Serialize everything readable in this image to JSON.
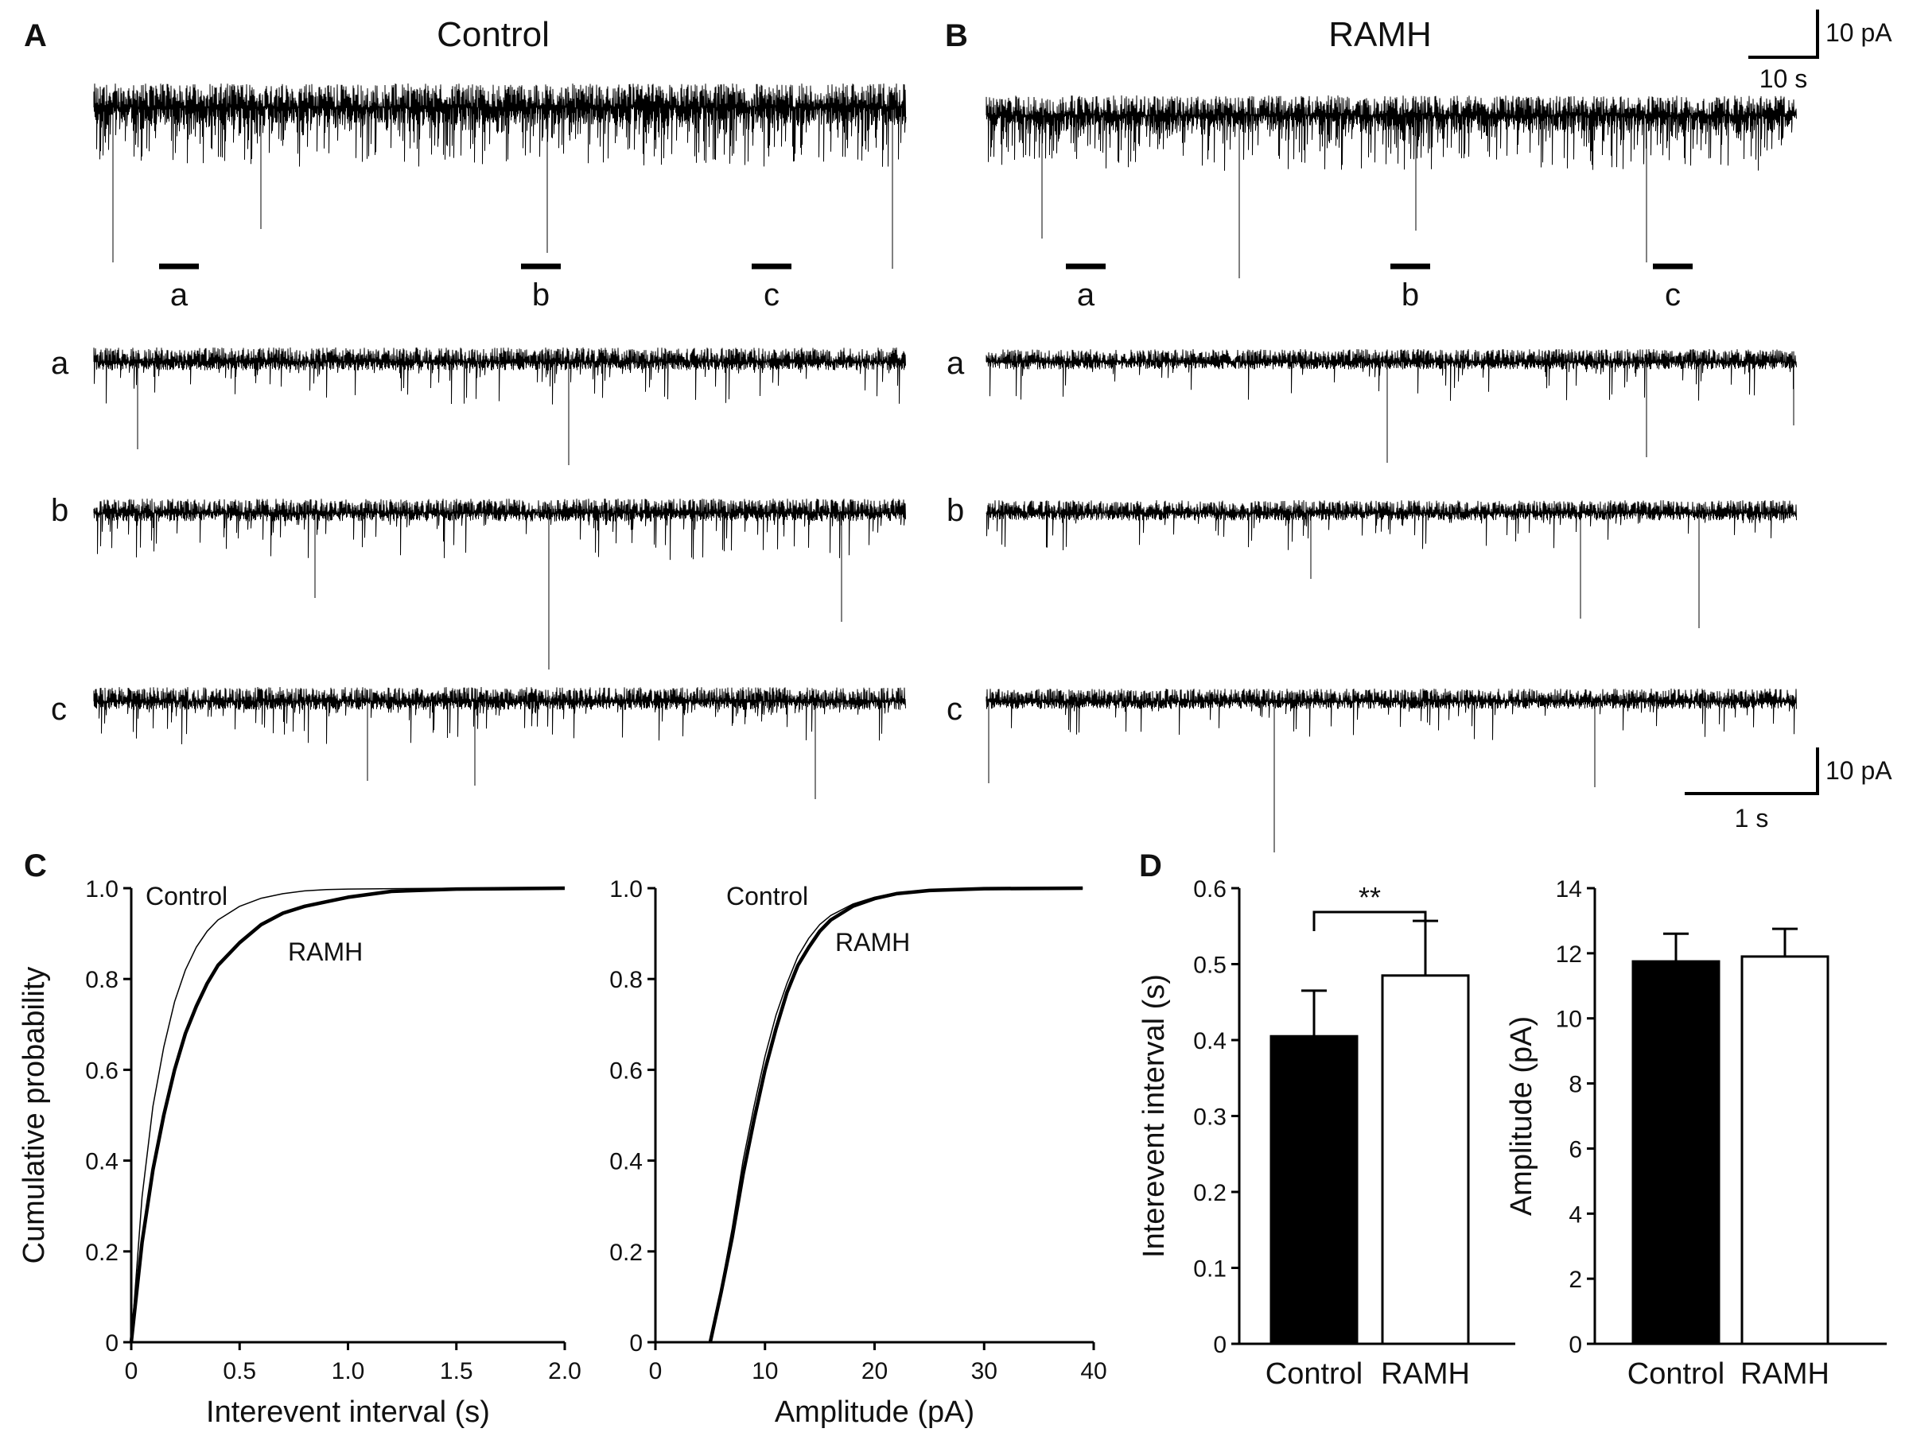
{
  "panels": {
    "A": {
      "letter": "A",
      "title": "Control"
    },
    "B": {
      "letter": "B",
      "title": "RAMH"
    },
    "C": {
      "letter": "C"
    },
    "D": {
      "letter": "D"
    }
  },
  "segments": [
    "a",
    "b",
    "c"
  ],
  "scalebars": {
    "top": {
      "y_label": "10 pA",
      "x_label": "10 s"
    },
    "bottom": {
      "y_label": "10 pA",
      "x_label": "1 s"
    }
  },
  "colors": {
    "ink": "#111111",
    "control_bar": "#000000",
    "ramh_bar": "#ffffff"
  },
  "chart_data": [
    {
      "type": "line",
      "xlabel": "Interevent interval (s)",
      "ylabel": "Cumulative probability",
      "xlim": [
        0,
        2.0
      ],
      "ylim": [
        0,
        1.0
      ],
      "xticks": [
        "0",
        "0.5",
        "1.0",
        "1.5",
        "2.0"
      ],
      "yticks": [
        "0",
        "0.2",
        "0.4",
        "0.6",
        "0.8",
        "1.0"
      ],
      "annotations": [
        "Control",
        "RAMH"
      ],
      "series": [
        {
          "name": "Control",
          "x": [
            0,
            0.05,
            0.1,
            0.15,
            0.2,
            0.25,
            0.3,
            0.35,
            0.4,
            0.5,
            0.6,
            0.7,
            0.8,
            0.9,
            1.0,
            1.2,
            1.5,
            2.0
          ],
          "y": [
            0,
            0.32,
            0.52,
            0.65,
            0.75,
            0.82,
            0.87,
            0.905,
            0.93,
            0.96,
            0.978,
            0.988,
            0.994,
            0.997,
            0.998,
            0.999,
            1.0,
            1.0
          ]
        },
        {
          "name": "RAMH",
          "x": [
            0,
            0.05,
            0.1,
            0.15,
            0.2,
            0.25,
            0.3,
            0.35,
            0.4,
            0.5,
            0.6,
            0.7,
            0.8,
            0.9,
            1.0,
            1.2,
            1.5,
            2.0
          ],
          "y": [
            0,
            0.22,
            0.38,
            0.5,
            0.6,
            0.68,
            0.74,
            0.79,
            0.83,
            0.88,
            0.92,
            0.945,
            0.96,
            0.97,
            0.98,
            0.993,
            0.998,
            1.0
          ]
        }
      ]
    },
    {
      "type": "line",
      "xlabel": "Amplitude (pA)",
      "ylabel": "",
      "xlim": [
        0,
        40
      ],
      "ylim": [
        0,
        1.0
      ],
      "xticks": [
        "0",
        "10",
        "20",
        "30",
        "40"
      ],
      "yticks": [
        "0",
        "0.2",
        "0.4",
        "0.6",
        "0.8",
        "1.0"
      ],
      "annotations": [
        "Control",
        "RAMH"
      ],
      "series": [
        {
          "name": "Control",
          "x": [
            5,
            6,
            7,
            8,
            9,
            10,
            11,
            12,
            13,
            14,
            15,
            16,
            18,
            20,
            22,
            25,
            30,
            39
          ],
          "y": [
            0,
            0.12,
            0.25,
            0.4,
            0.52,
            0.63,
            0.72,
            0.79,
            0.85,
            0.89,
            0.92,
            0.94,
            0.965,
            0.98,
            0.99,
            0.996,
            0.999,
            1.0
          ]
        },
        {
          "name": "RAMH",
          "x": [
            5,
            6,
            7,
            8,
            9,
            10,
            11,
            12,
            13,
            14,
            15,
            16,
            18,
            20,
            22,
            25,
            30,
            39
          ],
          "y": [
            0,
            0.11,
            0.23,
            0.37,
            0.49,
            0.6,
            0.69,
            0.77,
            0.83,
            0.87,
            0.905,
            0.93,
            0.96,
            0.977,
            0.988,
            0.995,
            0.999,
            1.0
          ]
        }
      ]
    },
    {
      "type": "bar",
      "ylabel": "Interevent interval (s)",
      "categories": [
        "Control",
        "RAMH"
      ],
      "values": [
        0.405,
        0.485
      ],
      "errors": [
        0.06,
        0.072
      ],
      "ylim": [
        0,
        0.6
      ],
      "yticks": [
        "0",
        "0.1",
        "0.2",
        "0.3",
        "0.4",
        "0.5",
        "0.6"
      ],
      "significance": "**"
    },
    {
      "type": "bar",
      "ylabel": "Amplitude (pA)",
      "categories": [
        "Control",
        "RAMH"
      ],
      "values": [
        11.75,
        11.9
      ],
      "errors": [
        0.85,
        0.85
      ],
      "ylim": [
        0,
        14
      ],
      "yticks": [
        "0",
        "2",
        "4",
        "6",
        "8",
        "10",
        "12",
        "14"
      ]
    }
  ]
}
